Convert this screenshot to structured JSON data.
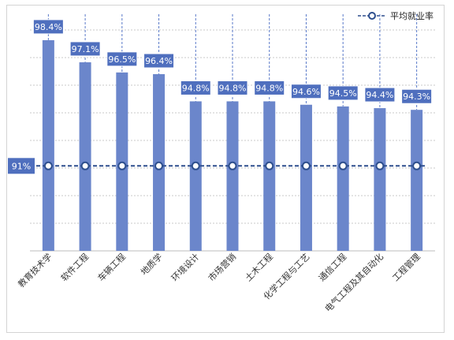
{
  "chart_data": {
    "type": "bar",
    "title": "",
    "xlabel": "",
    "ylabel": "",
    "categories": [
      "教育技术学",
      "软件工程",
      "车辆工程",
      "地质学",
      "环境设计",
      "市场营销",
      "土木工程",
      "化学工程与工艺",
      "通信工程",
      "电气工程及其自动化",
      "工程管理"
    ],
    "values": [
      98.4,
      97.1,
      96.5,
      96.4,
      94.8,
      94.8,
      94.8,
      94.6,
      94.5,
      94.4,
      94.3
    ],
    "value_labels": [
      "98.4%",
      "97.1%",
      "96.5%",
      "96.4%",
      "94.8%",
      "94.8%",
      "94.8%",
      "94.6%",
      "94.5%",
      "94.4%",
      "94.3%"
    ],
    "ylim": [
      86,
      99
    ],
    "reference_line": {
      "name": "平均就业率",
      "value": 91,
      "label": "91%"
    },
    "grid": true,
    "legend_position": "top-right",
    "colors": {
      "bar": "#6b86cb",
      "label_box": "#4f6fbe",
      "reference_line": "#2e4f8e",
      "marker_fill": "#ffffff",
      "grid": "#c8c8c8",
      "drop_line": "#5a7ac9"
    }
  }
}
